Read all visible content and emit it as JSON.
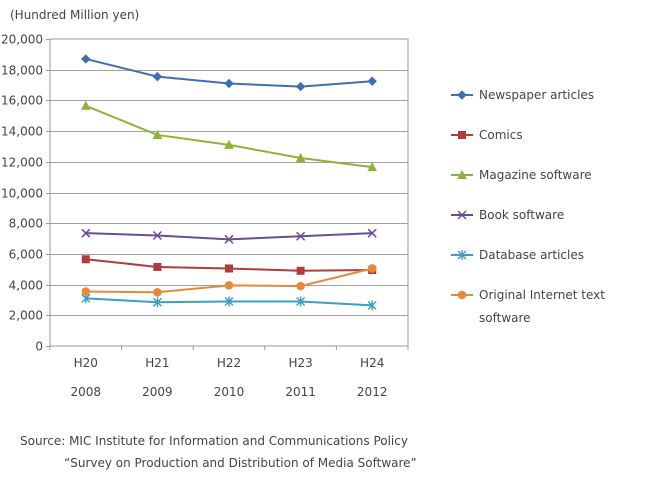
{
  "chart_data": {
    "type": "line",
    "ylabel": "(Hundred Million yen)",
    "ylim": [
      0,
      20000
    ],
    "yticks": [
      0,
      2000,
      4000,
      6000,
      8000,
      10000,
      12000,
      14000,
      16000,
      18000,
      20000
    ],
    "ytick_labels": [
      "0",
      "2,000",
      "4,000",
      "6,000",
      "8,000",
      "10,000",
      "12,000",
      "14,000",
      "16,000",
      "18,000",
      "20,000"
    ],
    "categories": [
      "H20",
      "H21",
      "H22",
      "H23",
      "H24"
    ],
    "categories_years": [
      "2008",
      "2009",
      "2010",
      "2011",
      "2012"
    ],
    "grid": "horizontal",
    "legend_position": "right",
    "series": [
      {
        "name": "Newspaper articles",
        "color": "#3f6fb0",
        "marker": "diamond",
        "values": [
          18700,
          17550,
          17100,
          16900,
          17250
        ]
      },
      {
        "name": "Comics",
        "color": "#b23b3b",
        "marker": "square",
        "values": [
          5650,
          5150,
          5050,
          4900,
          4950
        ]
      },
      {
        "name": "Magazine software",
        "color": "#8db33a",
        "marker": "triangle",
        "values": [
          15650,
          13750,
          13100,
          12250,
          11650
        ]
      },
      {
        "name": "Book software",
        "color": "#6b4d93",
        "marker": "x",
        "values": [
          7350,
          7200,
          6950,
          7150,
          7350
        ]
      },
      {
        "name": "Database articles",
        "color": "#3a9fc0",
        "marker": "asterisk",
        "values": [
          3100,
          2850,
          2900,
          2900,
          2650
        ]
      },
      {
        "name": "Original Internet text software",
        "name_lines": [
          "Original Internet text",
          "software"
        ],
        "color": "#e58a3a",
        "marker": "circle",
        "values": [
          3550,
          3500,
          3950,
          3900,
          5050
        ]
      }
    ]
  },
  "source": {
    "line1": "Source: MIC Institute for Information and Communications Policy",
    "line2": "“Survey on Production and Distribution of Media Software”"
  }
}
